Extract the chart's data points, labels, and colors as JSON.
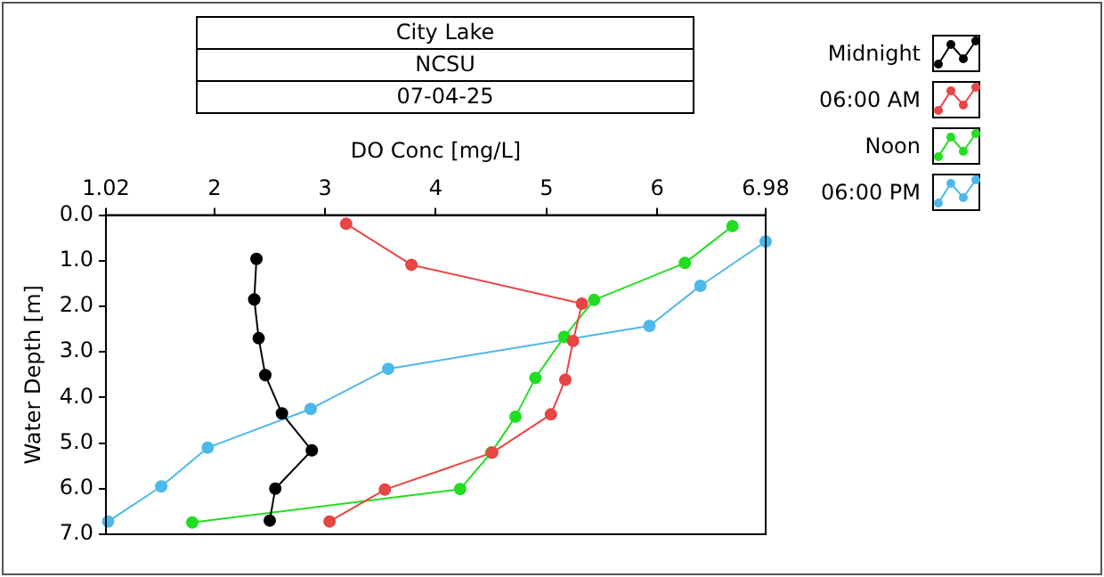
{
  "chart_data": {
    "type": "line",
    "title": "City Lake",
    "subtitle": "NCSU",
    "annotations": [
      "07-04-25"
    ],
    "xlabel": "DO Conc [mg/L]",
    "ylabel": "Water Depth [m]",
    "xlim": [
      1.02,
      6.98
    ],
    "xticks": [
      1.02,
      2,
      3,
      4,
      5,
      6,
      6.98
    ],
    "ylim": [
      7,
      0
    ],
    "yticks": [
      {
        "value": 0,
        "label": "0.0"
      },
      {
        "value": 1,
        "label": "1.0"
      },
      {
        "value": 2,
        "label": "2.0"
      },
      {
        "value": 3,
        "label": "3.0"
      },
      {
        "value": 4,
        "label": "4.0"
      },
      {
        "value": 5,
        "label": "5.0"
      },
      {
        "value": 6,
        "label": "6.0"
      },
      {
        "value": 7,
        "label": "7.0"
      }
    ],
    "grid": false,
    "legend": "right",
    "marker": "circle",
    "line_style": "solid",
    "series": [
      {
        "name": "Midnight",
        "color": "#000000",
        "x": [
          2.38,
          2.36,
          2.4,
          2.46,
          2.61,
          2.88,
          2.55,
          2.5
        ],
        "values": [
          0.96,
          1.85,
          2.7,
          3.51,
          4.35,
          5.16,
          6.0,
          6.7
        ]
      },
      {
        "name": "06:00 AM",
        "color": "#e84545",
        "x": [
          3.19,
          3.78,
          5.32,
          5.24,
          5.17,
          5.04,
          4.51,
          3.54,
          3.04
        ],
        "values": [
          0.19,
          1.09,
          1.94,
          2.76,
          3.61,
          4.37,
          5.21,
          6.02,
          6.72
        ]
      },
      {
        "name": "Noon",
        "color": "#22dd22",
        "x": [
          6.68,
          6.25,
          5.43,
          5.16,
          4.9,
          4.72,
          4.5,
          4.22,
          1.8
        ],
        "values": [
          0.24,
          1.05,
          1.86,
          2.67,
          3.57,
          4.42,
          5.21,
          6.01,
          6.74
        ]
      },
      {
        "name": "06:00 PM",
        "color": "#4db8ea",
        "x": [
          6.98,
          6.39,
          5.93,
          3.57,
          2.87,
          1.94,
          1.52,
          1.04
        ],
        "values": [
          0.58,
          1.55,
          2.43,
          3.37,
          4.25,
          5.1,
          5.95,
          6.72
        ]
      }
    ]
  }
}
